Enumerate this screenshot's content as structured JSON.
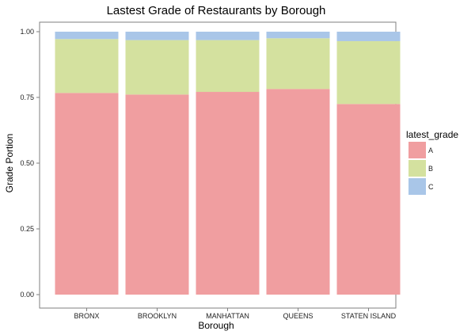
{
  "chart_data": {
    "type": "bar",
    "stacked": true,
    "title": "Lastest Grade of Restaurants by Borough",
    "xlabel": "Borough",
    "ylabel": "Grade Portion",
    "ylim": [
      0,
      1
    ],
    "yticks": [
      "0.00",
      "0.25",
      "0.50",
      "0.75",
      "1.00"
    ],
    "categories": [
      "BRONX",
      "BROOKLYN",
      "MANHATTAN",
      "QUEENS",
      "STATEN ISLAND"
    ],
    "series": [
      {
        "name": "A",
        "color": "#f09ea0",
        "values": [
          0.767,
          0.761,
          0.771,
          0.782,
          0.725
        ]
      },
      {
        "name": "B",
        "color": "#d4e19f",
        "values": [
          0.205,
          0.207,
          0.197,
          0.193,
          0.239
        ]
      },
      {
        "name": "C",
        "color": "#a9c6e8",
        "values": [
          0.028,
          0.032,
          0.032,
          0.025,
          0.036
        ]
      }
    ],
    "legend": {
      "title": "latest_grade",
      "position": "right"
    },
    "grid": false
  }
}
